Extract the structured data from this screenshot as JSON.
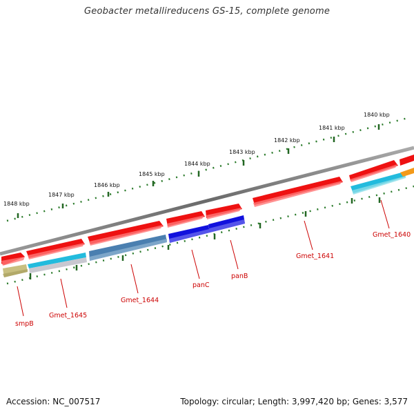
{
  "title": "Geobacter metallireducens GS-15, complete genome",
  "footer": {
    "accession": "Accession: NC_007517",
    "topology": "Topology: circular; Length: 3,997,420 bp; Genes: 3,577"
  },
  "ruler_labels": [
    "1848 kbp",
    "1847 kbp",
    "1846 kbp",
    "1845 kbp",
    "1844 kbp",
    "1843 kbp",
    "1842 kbp",
    "1841 kbp",
    "1840 kbp"
  ],
  "gene_labels": [
    "smpB",
    "Gmet_1645",
    "Gmet_1644",
    "panC",
    "panB",
    "Gmet_1641",
    "Gmet_1640"
  ],
  "colors": {
    "backbone": "#888888",
    "forward_gene": "#ee1111",
    "reverse_cyan": "#22bbdd",
    "reverse_steel": "#4a7fb0",
    "reverse_blue": "#1111dd",
    "reverse_olive": "#c8bf80",
    "reverse_gray": "#c8c8d0",
    "reverse_orange": "#f39a1a",
    "ruler": "#226622",
    "label": "#cc0000"
  }
}
